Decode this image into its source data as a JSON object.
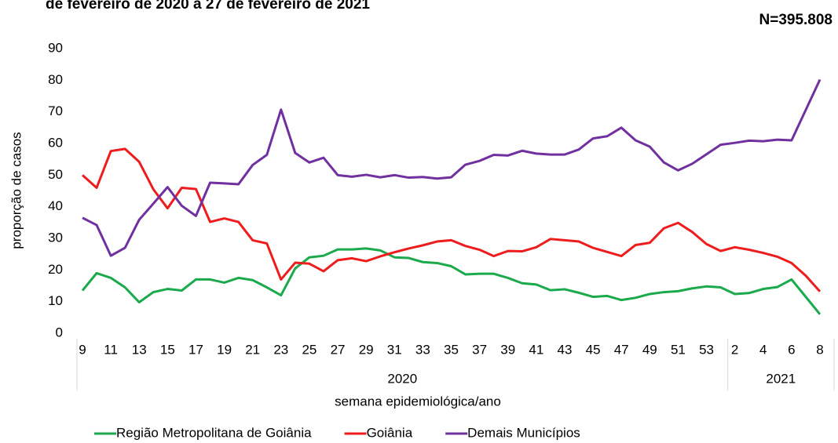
{
  "chart_data": {
    "type": "line",
    "title": "de fevereiro de 2020 a 27 de fevereiro de 2021",
    "annotation": "N=395.808",
    "x_label": "semana epidemiológica/ano",
    "y_label": "proporção de casos",
    "categories": [
      "9",
      null,
      "11",
      null,
      "13",
      null,
      "15",
      null,
      "17",
      null,
      "19",
      null,
      "21",
      null,
      "23",
      null,
      "25",
      null,
      "27",
      null,
      "29",
      null,
      "31",
      null,
      "33",
      null,
      "35",
      null,
      "37",
      null,
      "39",
      null,
      "41",
      null,
      "43",
      null,
      "45",
      null,
      "47",
      null,
      "49",
      null,
      "51",
      null,
      "53",
      null,
      "2",
      null,
      "4",
      null,
      "6",
      null,
      "8"
    ],
    "groups": [
      {
        "name": "2020",
        "categories": 46
      },
      {
        "name": "2021",
        "categories": 7
      }
    ],
    "ylim": [
      0,
      90
    ],
    "yticks": [
      0,
      10,
      20,
      30,
      40,
      50,
      60,
      70,
      80,
      90
    ],
    "grid": false,
    "legend": "bottom",
    "series": [
      {
        "name": "Região Metropolitana de Goiânia",
        "color": "#1aaa4b",
        "values": [
          13.5,
          19,
          17.5,
          14.5,
          9.8,
          13,
          14,
          13.5,
          17,
          17,
          16,
          17.5,
          16.8,
          14.5,
          12,
          20.5,
          24,
          24.5,
          26.5,
          26.5,
          26.8,
          26.2,
          24,
          23.8,
          22.5,
          22.2,
          21.2,
          18.6,
          18.8,
          18.8,
          17.5,
          15.8,
          15.4,
          13.6,
          13.9,
          12.8,
          11.5,
          11.8,
          10.5,
          11.2,
          12.4,
          13,
          13.3,
          14.2,
          14.8,
          14.5,
          12.4,
          12.7,
          14,
          14.6,
          17,
          11.5,
          6
        ]
      },
      {
        "name": "Goiânia",
        "color": "#ee1c1c",
        "values": [
          50,
          46,
          57.6,
          58.3,
          54.2,
          45.5,
          39.5,
          46,
          45.6,
          35.2,
          36.3,
          35.2,
          29.4,
          28.4,
          17,
          22.3,
          22,
          19.6,
          23.1,
          23.7,
          22.8,
          24.3,
          25.6,
          26.8,
          27.8,
          29,
          29.4,
          27.6,
          26.4,
          24.4,
          26,
          25.9,
          27.2,
          29.8,
          29.4,
          29,
          27,
          25.7,
          24.4,
          27.9,
          28.6,
          33.2,
          34.9,
          32,
          28.2,
          26,
          27.2,
          26.4,
          25.4,
          24.2,
          22.2,
          18.2,
          13.2
        ]
      },
      {
        "name": "Demais Municípios",
        "color": "#7030a0",
        "values": [
          36.5,
          34.2,
          24.5,
          27,
          35.9,
          41,
          46.2,
          40.3,
          37.1,
          47.6,
          47.4,
          47.1,
          53.2,
          56.4,
          70.7,
          57,
          54,
          55.5,
          50,
          49.5,
          50.1,
          49.3,
          50,
          49.2,
          49.4,
          48.9,
          49.3,
          53.3,
          54.5,
          56.4,
          56.2,
          57.7,
          56.8,
          56.5,
          56.5,
          58.1,
          61.6,
          62.3,
          65,
          61,
          59,
          54,
          51.5,
          53.6,
          56.6,
          59.6,
          60.2,
          60.9,
          60.7,
          61.2,
          61,
          70.6,
          80.2
        ]
      }
    ]
  }
}
